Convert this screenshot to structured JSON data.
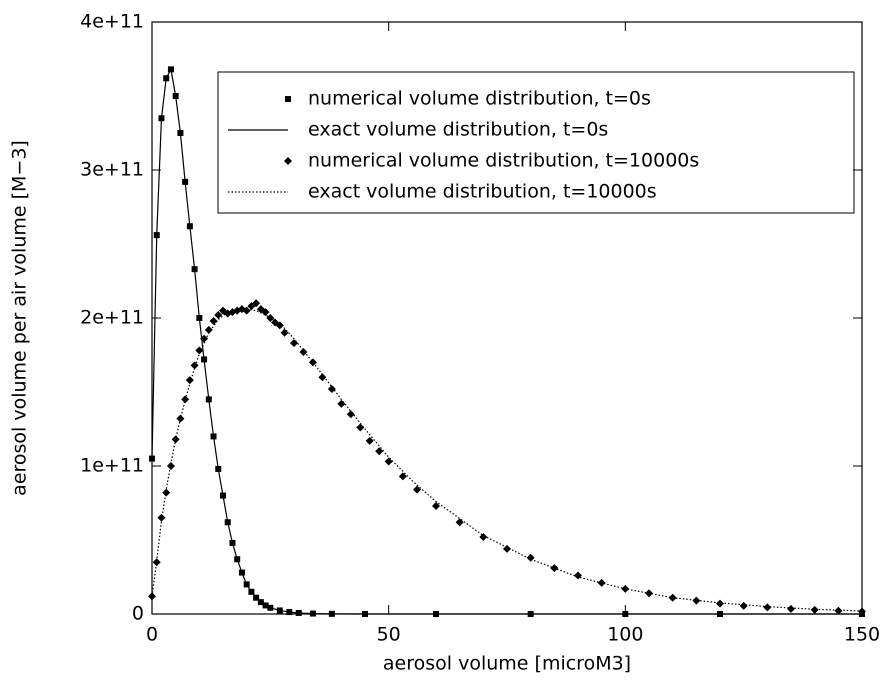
{
  "chart_data": {
    "type": "line",
    "xlabel": "aerosol volume [microM3]",
    "ylabel": "aerosol volume per air volume [M−3]",
    "xlim": [
      0,
      150
    ],
    "xticks": [
      0,
      50,
      100,
      150
    ],
    "ylim": [
      0,
      400000000000.0
    ],
    "yticks": [
      0,
      {
        "value": 100000000000.0,
        "label": "1e+11"
      },
      {
        "value": 200000000000.0,
        "label": "2e+11"
      },
      {
        "value": 300000000000.0,
        "label": "3e+11"
      },
      {
        "value": 400000000000.0,
        "label": "4e+11"
      }
    ],
    "legend": "top-right",
    "series": [
      {
        "name": "numerical volume distribution, t=0s",
        "color": "#000000",
        "marker": "square",
        "linestyle": "none",
        "x": [
          0,
          1,
          2,
          3,
          4,
          5,
          6,
          7,
          8,
          9,
          10,
          11,
          12,
          13,
          14,
          15,
          16,
          17,
          18,
          19,
          20,
          21,
          22,
          23,
          24,
          25,
          27,
          29,
          31,
          34,
          38,
          45,
          60,
          80,
          100,
          120,
          150
        ],
        "values": [
          105000000000.0,
          256000000000.0,
          335000000000.0,
          362000000000.0,
          368000000000.0,
          350000000000.0,
          325000000000.0,
          292000000000.0,
          262000000000.0,
          233000000000.0,
          200000000000.0,
          172000000000.0,
          145000000000.0,
          120000000000.0,
          98000000000.0,
          80000000000.0,
          62000000000.0,
          48000000000.0,
          37000000000.0,
          28000000000.0,
          20000000000.0,
          15000000000.0,
          11000000000.0,
          8000000000.0,
          5800000000.0,
          4200000000.0,
          2400000000.0,
          1300000000.0,
          700000000.0,
          300000000.0,
          100000000.0,
          20000000.0,
          0,
          0,
          0,
          0,
          0
        ]
      },
      {
        "name": "exact volume distribution, t=0s",
        "color": "#000000",
        "marker": "none",
        "linestyle": "solid",
        "x": [
          0,
          1,
          2,
          3,
          4,
          5,
          6,
          7,
          8,
          9,
          10,
          11,
          12,
          13,
          14,
          15,
          16,
          17,
          18,
          19,
          20,
          21,
          22,
          23,
          24,
          25,
          27,
          29,
          31,
          34,
          38,
          45,
          60,
          80,
          100,
          120,
          150
        ],
        "values": [
          105000000000.0,
          256000000000.0,
          335000000000.0,
          362000000000.0,
          368000000000.0,
          350000000000.0,
          325000000000.0,
          292000000000.0,
          262000000000.0,
          233000000000.0,
          200000000000.0,
          172000000000.0,
          145000000000.0,
          120000000000.0,
          98000000000.0,
          80000000000.0,
          62000000000.0,
          48000000000.0,
          37000000000.0,
          28000000000.0,
          20000000000.0,
          15000000000.0,
          11000000000.0,
          8000000000.0,
          5800000000.0,
          4200000000.0,
          2400000000.0,
          1300000000.0,
          700000000.0,
          300000000.0,
          100000000.0,
          20000000.0,
          0,
          0,
          0,
          0,
          0
        ]
      },
      {
        "name": "numerical volume distribution, t=10000s",
        "color": "#000000",
        "marker": "diamond",
        "linestyle": "none",
        "x": [
          0,
          1,
          2,
          3,
          4,
          5,
          6,
          7,
          8,
          9,
          10,
          11,
          12,
          13,
          14,
          15,
          16,
          17,
          18,
          19,
          20,
          21,
          22,
          23,
          24,
          25,
          26,
          27,
          28,
          30,
          32,
          34,
          36,
          38,
          40,
          42,
          44,
          46,
          48,
          50,
          53,
          56,
          60,
          65,
          70,
          75,
          80,
          85,
          90,
          95,
          100,
          105,
          110,
          115,
          120,
          125,
          130,
          135,
          140,
          145,
          150
        ],
        "values": [
          12000000000.0,
          35000000000.0,
          65000000000.0,
          82000000000.0,
          100000000000.0,
          118000000000.0,
          132000000000.0,
          145000000000.0,
          158000000000.0,
          168000000000.0,
          178000000000.0,
          186000000000.0,
          192000000000.0,
          198000000000.0,
          202000000000.0,
          205000000000.0,
          203000000000.0,
          204000000000.0,
          205000000000.0,
          206000000000.0,
          205000000000.0,
          208000000000.0,
          210000000000.0,
          206000000000.0,
          204000000000.0,
          200000000000.0,
          197000000000.0,
          195000000000.0,
          190000000000.0,
          183000000000.0,
          177000000000.0,
          170000000000.0,
          160000000000.0,
          152000000000.0,
          142000000000.0,
          135000000000.0,
          126000000000.0,
          117000000000.0,
          110000000000.0,
          103000000000.0,
          93000000000.0,
          84000000000.0,
          73000000000.0,
          62000000000.0,
          52000000000.0,
          44000000000.0,
          38000000000.0,
          31000000000.0,
          26000000000.0,
          21000000000.0,
          17000000000.0,
          14000000000.0,
          11000000000.0,
          9000000000.0,
          7000000000.0,
          5500000000.0,
          4500000000.0,
          3500000000.0,
          2800000000.0,
          2200000000.0,
          1700000000.0
        ]
      },
      {
        "name": "exact volume distribution, t=10000s",
        "color": "#000000",
        "marker": "none",
        "linestyle": "dotted",
        "x": [
          0,
          1,
          2,
          3,
          4,
          5,
          6,
          8,
          10,
          12,
          14,
          16,
          18,
          20,
          22,
          24,
          26,
          28,
          30,
          35,
          40,
          45,
          50,
          55,
          60,
          70,
          80,
          90,
          100,
          110,
          120,
          130,
          140,
          150
        ],
        "values": [
          12000000000.0,
          36000000000.0,
          63000000000.0,
          84000000000.0,
          102000000000.0,
          118000000000.0,
          132000000000.0,
          156000000000.0,
          176000000000.0,
          190000000000.0,
          199000000000.0,
          204000000000.0,
          206000000000.0,
          206000000000.0,
          205000000000.0,
          202000000000.0,
          198000000000.0,
          193000000000.0,
          186000000000.0,
          166000000000.0,
          145000000000.0,
          125000000000.0,
          106000000000.0,
          90000000000.0,
          76000000000.0,
          53000000000.0,
          37000000000.0,
          25000000000.0,
          17000000000.0,
          11000000000.0,
          7500000000.0,
          5000000000.0,
          3200000000.0,
          2000000000.0
        ]
      }
    ]
  }
}
